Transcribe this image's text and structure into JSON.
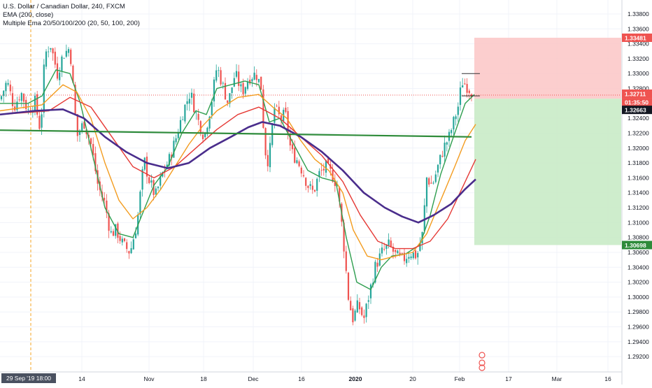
{
  "legend": {
    "title": "U.S. Dollar / Canadian Dollar, 240, FXCM",
    "ema": "EMA (200, close)",
    "multi_ema": "Multiple Ema 20/50/100/200 (20, 50, 100, 200)"
  },
  "colors": {
    "background": "#ffffff",
    "grid": "#f0f3fa",
    "up_candle": "#26a69a",
    "down_candle": "#ef5350",
    "ema20": "#2e9e4f",
    "ema50": "#f39c1f",
    "ema100": "#e53935",
    "ema200": "#4a2d8c",
    "trendline": "#2e8b3a",
    "stop_zone": "#fbc5c5",
    "target_zone": "#c9ebc7",
    "price_line": "#ef5350",
    "label_dark": "#131722"
  },
  "chart_data": {
    "type": "candlestick",
    "symbol": "U.S. Dollar / Canadian Dollar",
    "interval": "240",
    "source": "FXCM",
    "ylim": [
      1.2912,
      1.3387
    ],
    "y_ticks": [
      "1.33800",
      "1.33600",
      "1.33400",
      "1.33200",
      "1.33000",
      "1.32800",
      "1.32600",
      "1.32400",
      "1.32200",
      "1.32000",
      "1.31800",
      "1.31600",
      "1.31400",
      "1.31200",
      "1.31000",
      "1.30800",
      "1.30600",
      "1.30400",
      "1.30200",
      "1.30000",
      "1.29800",
      "1.29600",
      "1.29400",
      "1.29200"
    ],
    "x_ticks": [
      "14",
      "Nov",
      "18",
      "Dec",
      "16",
      "2020",
      "20",
      "Feb",
      "17",
      "Mar",
      "16"
    ],
    "crosshair_date_label": "29 Sep '19  18:00",
    "price_labels": {
      "stop": "1.33481",
      "current": "1.32711",
      "countdown": "01:35:50",
      "entry": "1.32663",
      "target": "1.30698"
    },
    "levels": {
      "stop": 1.33481,
      "current": 1.32711,
      "entry": 1.32663,
      "target": 1.30698
    },
    "price_path": [
      [
        0,
        1.3265
      ],
      [
        10,
        1.329
      ],
      [
        20,
        1.3255
      ],
      [
        30,
        1.3275
      ],
      [
        40,
        1.325
      ],
      [
        50,
        1.3262
      ],
      [
        58,
        1.3222
      ],
      [
        64,
        1.3325
      ],
      [
        72,
        1.334
      ],
      [
        82,
        1.33
      ],
      [
        90,
        1.3325
      ],
      [
        100,
        1.3335
      ],
      [
        110,
        1.3215
      ],
      [
        120,
        1.3235
      ],
      [
        130,
        1.3205
      ],
      [
        140,
        1.315
      ],
      [
        150,
        1.3125
      ],
      [
        158,
        1.3085
      ],
      [
        166,
        1.309
      ],
      [
        176,
        1.307
      ],
      [
        186,
        1.306
      ],
      [
        196,
        1.31
      ],
      [
        206,
        1.3185
      ],
      [
        212,
        1.316
      ],
      [
        222,
        1.3135
      ],
      [
        232,
        1.3165
      ],
      [
        242,
        1.3185
      ],
      [
        252,
        1.3215
      ],
      [
        262,
        1.325
      ],
      [
        272,
        1.3275
      ],
      [
        282,
        1.324
      ],
      [
        292,
        1.3215
      ],
      [
        302,
        1.326
      ],
      [
        310,
        1.331
      ],
      [
        318,
        1.3285
      ],
      [
        326,
        1.326
      ],
      [
        336,
        1.33
      ],
      [
        346,
        1.3275
      ],
      [
        356,
        1.3295
      ],
      [
        366,
        1.33
      ],
      [
        374,
        1.328
      ],
      [
        378,
        1.32
      ],
      [
        384,
        1.318
      ],
      [
        392,
        1.3255
      ],
      [
        400,
        1.324
      ],
      [
        408,
        1.3245
      ],
      [
        416,
        1.3195
      ],
      [
        424,
        1.3185
      ],
      [
        432,
        1.317
      ],
      [
        440,
        1.315
      ],
      [
        448,
        1.314
      ],
      [
        456,
        1.3165
      ],
      [
        466,
        1.3175
      ],
      [
        474,
        1.3165
      ],
      [
        482,
        1.315
      ],
      [
        490,
        1.3085
      ],
      [
        498,
        1.3
      ],
      [
        504,
        1.297
      ],
      [
        512,
        1.299
      ],
      [
        520,
        1.297
      ],
      [
        528,
        1.3005
      ],
      [
        536,
        1.304
      ],
      [
        546,
        1.306
      ],
      [
        556,
        1.307
      ],
      [
        566,
        1.3055
      ],
      [
        576,
        1.305
      ],
      [
        586,
        1.306
      ],
      [
        596,
        1.3055
      ],
      [
        604,
        1.3085
      ],
      [
        610,
        1.316
      ],
      [
        618,
        1.315
      ],
      [
        626,
        1.3175
      ],
      [
        634,
        1.32
      ],
      [
        642,
        1.3215
      ],
      [
        650,
        1.324
      ],
      [
        656,
        1.326
      ],
      [
        660,
        1.329
      ],
      [
        666,
        1.3285
      ],
      [
        672,
        1.3278
      ],
      [
        678,
        1.3271
      ]
    ],
    "ema20": [
      [
        0,
        1.326
      ],
      [
        40,
        1.326
      ],
      [
        60,
        1.327
      ],
      [
        80,
        1.3305
      ],
      [
        100,
        1.33
      ],
      [
        115,
        1.326
      ],
      [
        130,
        1.32
      ],
      [
        150,
        1.312
      ],
      [
        170,
        1.3085
      ],
      [
        190,
        1.308
      ],
      [
        205,
        1.3115
      ],
      [
        220,
        1.315
      ],
      [
        240,
        1.3175
      ],
      [
        260,
        1.322
      ],
      [
        280,
        1.325
      ],
      [
        295,
        1.3245
      ],
      [
        310,
        1.328
      ],
      [
        330,
        1.3285
      ],
      [
        350,
        1.329
      ],
      [
        370,
        1.3285
      ],
      [
        385,
        1.3235
      ],
      [
        400,
        1.324
      ],
      [
        420,
        1.3205
      ],
      [
        440,
        1.317
      ],
      [
        460,
        1.316
      ],
      [
        480,
        1.3155
      ],
      [
        495,
        1.308
      ],
      [
        510,
        1.302
      ],
      [
        530,
        1.301
      ],
      [
        545,
        1.304
      ],
      [
        560,
        1.3055
      ],
      [
        580,
        1.3058
      ],
      [
        600,
        1.307
      ],
      [
        615,
        1.311
      ],
      [
        630,
        1.3165
      ],
      [
        650,
        1.322
      ],
      [
        665,
        1.326
      ],
      [
        678,
        1.3272
      ]
    ],
    "ema50": [
      [
        0,
        1.325
      ],
      [
        60,
        1.3258
      ],
      [
        90,
        1.3285
      ],
      [
        110,
        1.3275
      ],
      [
        130,
        1.324
      ],
      [
        150,
        1.318
      ],
      [
        170,
        1.313
      ],
      [
        190,
        1.3105
      ],
      [
        210,
        1.312
      ],
      [
        230,
        1.3145
      ],
      [
        250,
        1.3175
      ],
      [
        270,
        1.3205
      ],
      [
        290,
        1.323
      ],
      [
        310,
        1.325
      ],
      [
        340,
        1.3268
      ],
      [
        370,
        1.3272
      ],
      [
        390,
        1.3255
      ],
      [
        410,
        1.324
      ],
      [
        430,
        1.321
      ],
      [
        450,
        1.3185
      ],
      [
        470,
        1.317
      ],
      [
        490,
        1.314
      ],
      [
        505,
        1.309
      ],
      [
        525,
        1.3055
      ],
      [
        545,
        1.305
      ],
      [
        565,
        1.3055
      ],
      [
        590,
        1.306
      ],
      [
        610,
        1.3085
      ],
      [
        630,
        1.313
      ],
      [
        650,
        1.3175
      ],
      [
        665,
        1.321
      ],
      [
        680,
        1.3232
      ]
    ],
    "ema100": [
      [
        0,
        1.3245
      ],
      [
        70,
        1.325
      ],
      [
        100,
        1.3268
      ],
      [
        130,
        1.3255
      ],
      [
        160,
        1.3215
      ],
      [
        190,
        1.3175
      ],
      [
        220,
        1.316
      ],
      [
        250,
        1.3175
      ],
      [
        280,
        1.32
      ],
      [
        310,
        1.3225
      ],
      [
        340,
        1.3245
      ],
      [
        370,
        1.3255
      ],
      [
        400,
        1.324
      ],
      [
        430,
        1.3215
      ],
      [
        460,
        1.319
      ],
      [
        490,
        1.3155
      ],
      [
        515,
        1.311
      ],
      [
        540,
        1.3075
      ],
      [
        565,
        1.3065
      ],
      [
        590,
        1.3065
      ],
      [
        615,
        1.3075
      ],
      [
        640,
        1.3105
      ],
      [
        660,
        1.3145
      ],
      [
        680,
        1.3185
      ]
    ],
    "ema200": [
      [
        0,
        1.3245
      ],
      [
        50,
        1.325
      ],
      [
        90,
        1.3252
      ],
      [
        120,
        1.324
      ],
      [
        150,
        1.3215
      ],
      [
        180,
        1.3195
      ],
      [
        210,
        1.318
      ],
      [
        240,
        1.3173
      ],
      [
        270,
        1.318
      ],
      [
        300,
        1.32
      ],
      [
        330,
        1.3215
      ],
      [
        355,
        1.3228
      ],
      [
        375,
        1.3235
      ],
      [
        400,
        1.323
      ],
      [
        430,
        1.3215
      ],
      [
        460,
        1.3195
      ],
      [
        490,
        1.317
      ],
      [
        520,
        1.314
      ],
      [
        550,
        1.312
      ],
      [
        575,
        1.3108
      ],
      [
        598,
        1.31
      ],
      [
        620,
        1.311
      ],
      [
        645,
        1.3125
      ],
      [
        665,
        1.3145
      ],
      [
        680,
        1.3158
      ]
    ],
    "trendline": [
      [
        0,
        1.3224
      ],
      [
        674,
        1.3215
      ]
    ],
    "position_x_range": [
      678,
      888
    ]
  }
}
